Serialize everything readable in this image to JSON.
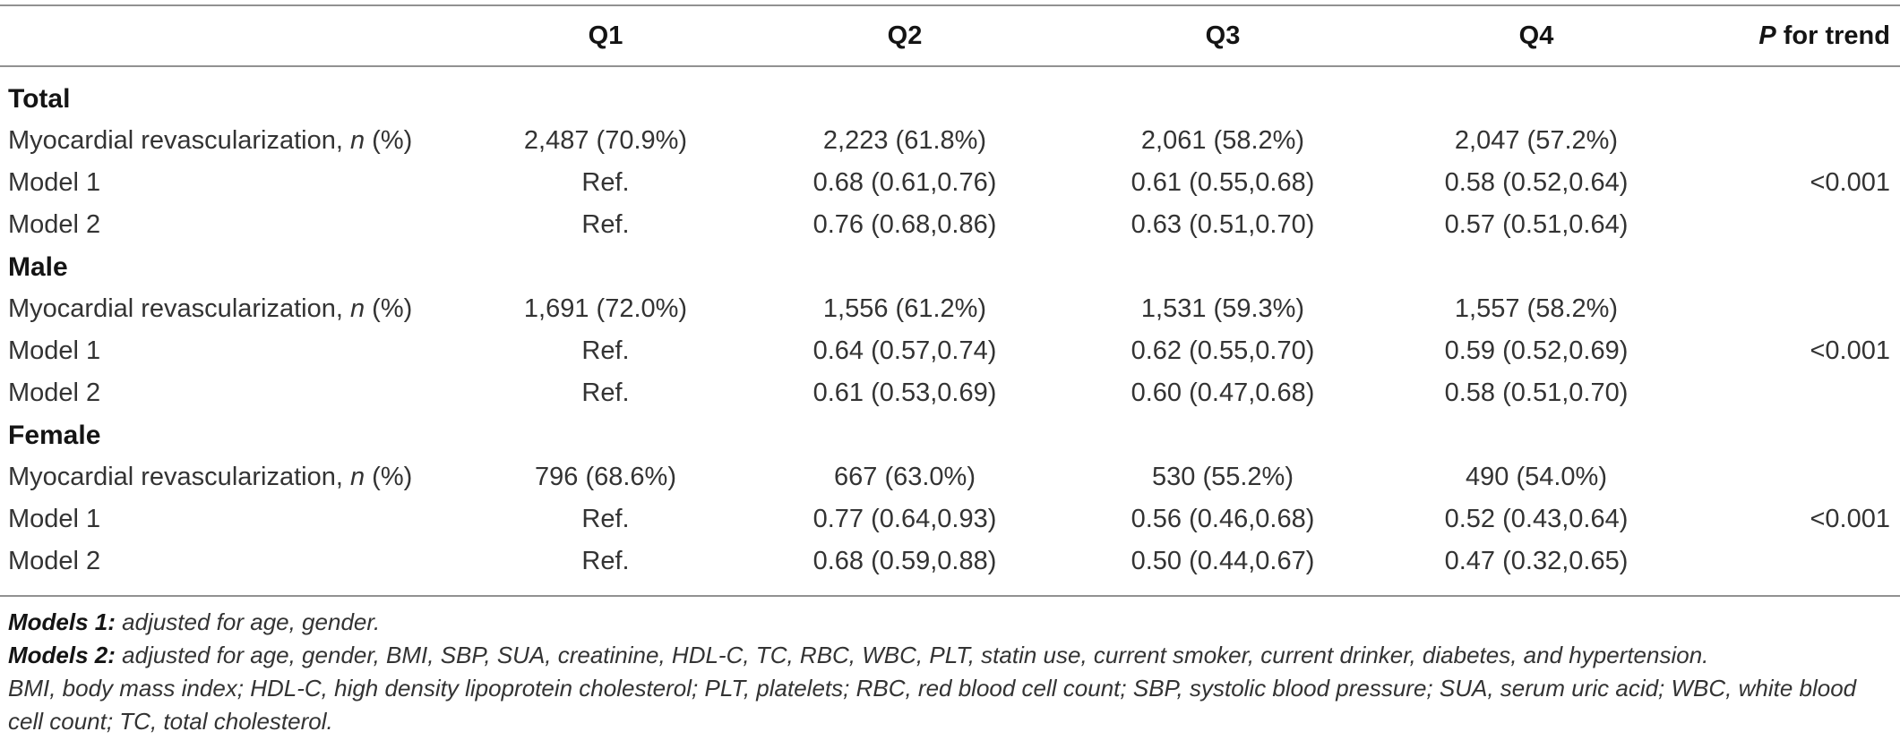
{
  "table": {
    "header": {
      "q1": "Q1",
      "q2": "Q2",
      "q3": "Q3",
      "q4": "Q4",
      "p_italic": "P",
      "p_text": " for trend"
    },
    "sections": [
      {
        "title": "Total",
        "rows": [
          {
            "label_pre": "Myocardial revascularization, ",
            "label_italic": "n",
            "label_post": " (%)",
            "q1": "2,487 (70.9%)",
            "q2": "2,223 (61.8%)",
            "q3": "2,061 (58.2%)",
            "q4": "2,047 (57.2%)",
            "p": ""
          },
          {
            "label_pre": "Model 1",
            "label_italic": "",
            "label_post": "",
            "q1": "Ref.",
            "q2": "0.68 (0.61,0.76)",
            "q3": "0.61 (0.55,0.68)",
            "q4": "0.58 (0.52,0.64)",
            "p": "<0.001"
          },
          {
            "label_pre": "Model 2",
            "label_italic": "",
            "label_post": "",
            "q1": "Ref.",
            "q2": "0.76 (0.68,0.86)",
            "q3": "0.63 (0.51,0.70)",
            "q4": "0.57 (0.51,0.64)",
            "p": ""
          }
        ]
      },
      {
        "title": "Male",
        "rows": [
          {
            "label_pre": "Myocardial revascularization, ",
            "label_italic": "n",
            "label_post": " (%)",
            "q1": "1,691 (72.0%)",
            "q2": "1,556 (61.2%)",
            "q3": "1,531 (59.3%)",
            "q4": "1,557 (58.2%)",
            "p": ""
          },
          {
            "label_pre": "Model 1",
            "label_italic": "",
            "label_post": "",
            "q1": "Ref.",
            "q2": "0.64 (0.57,0.74)",
            "q3": "0.62 (0.55,0.70)",
            "q4": "0.59 (0.52,0.69)",
            "p": "<0.001"
          },
          {
            "label_pre": "Model 2",
            "label_italic": "",
            "label_post": "",
            "q1": "Ref.",
            "q2": "0.61 (0.53,0.69)",
            "q3": "0.60 (0.47,0.68)",
            "q4": "0.58 (0.51,0.70)",
            "p": ""
          }
        ]
      },
      {
        "title": "Female",
        "rows": [
          {
            "label_pre": "Myocardial revascularization, ",
            "label_italic": "n",
            "label_post": " (%)",
            "q1": "796 (68.6%)",
            "q2": "667 (63.0%)",
            "q3": "530 (55.2%)",
            "q4": "490 (54.0%)",
            "p": ""
          },
          {
            "label_pre": "Model 1",
            "label_italic": "",
            "label_post": "",
            "q1": "Ref.",
            "q2": "0.77 (0.64,0.93)",
            "q3": "0.56 (0.46,0.68)",
            "q4": "0.52 (0.43,0.64)",
            "p": "<0.001"
          },
          {
            "label_pre": "Model 2",
            "label_italic": "",
            "label_post": "",
            "q1": "Ref.",
            "q2": "0.68 (0.59,0.88)",
            "q3": "0.50 (0.44,0.67)",
            "q4": "0.47 (0.32,0.65)",
            "p": ""
          }
        ]
      }
    ]
  },
  "footnotes": {
    "line1_bold": "Models 1:",
    "line1_text": " adjusted for age, gender.",
    "line2_bold": "Models 2:",
    "line2_text": " adjusted for age, gender, BMI, SBP, SUA, creatinine, HDL-C, TC, RBC, WBC, PLT, statin use, current smoker, current drinker, diabetes, and hypertension.",
    "line3_text": "BMI, body mass index; HDL-C, high density lipoprotein cholesterol; PLT, platelets; RBC, red blood cell count; SBP, systolic blood pressure; SUA, serum uric acid; WBC, white blood cell count; TC, total cholesterol."
  },
  "colors": {
    "rule": "#919191",
    "text": "#333333",
    "bold_text": "#141414",
    "background": "#ffffff"
  }
}
